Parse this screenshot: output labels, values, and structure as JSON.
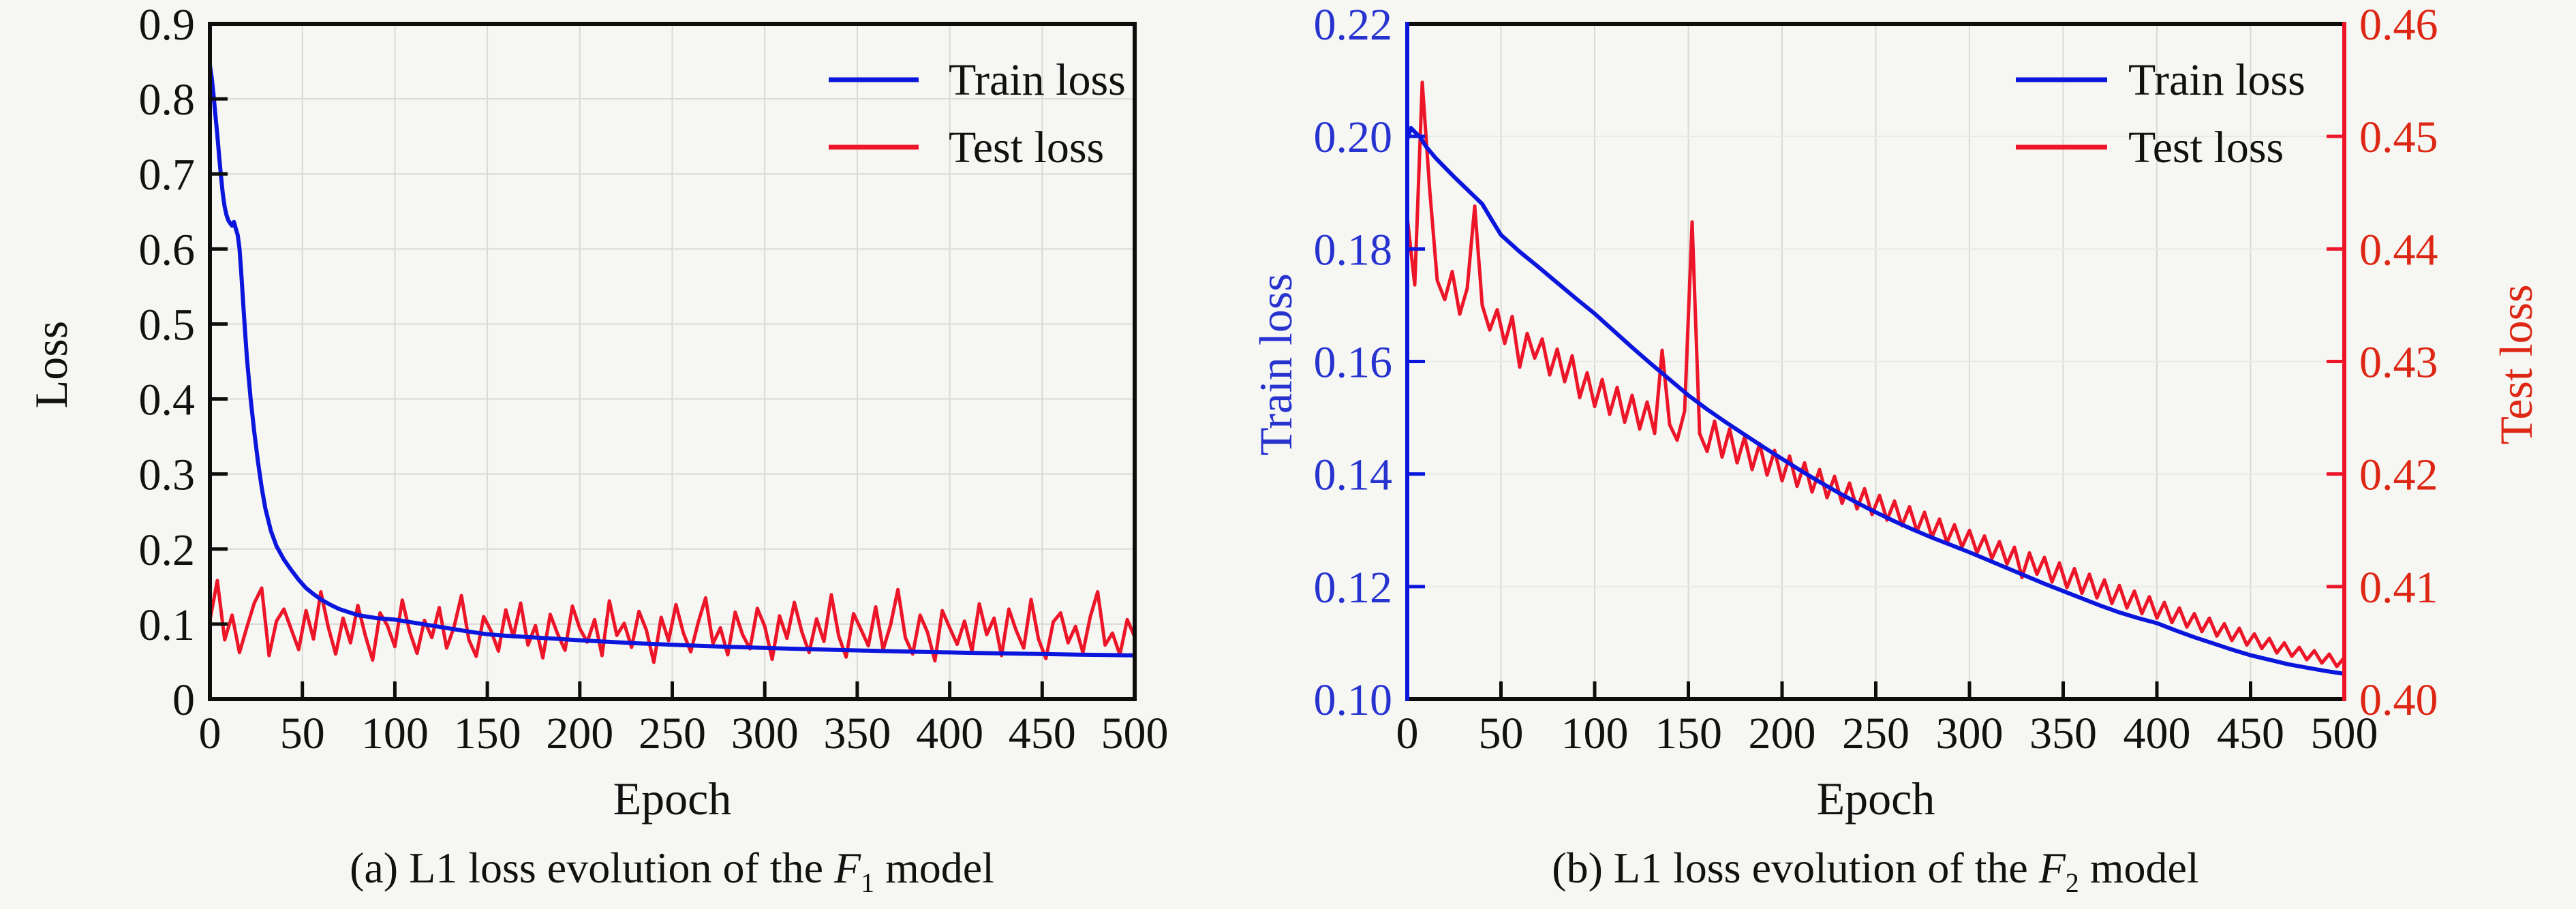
{
  "ui": {
    "background": "#f6f6f3",
    "text_color": "#111111",
    "blue": "#0b16dd",
    "red": "#ed1528",
    "blue_label_color": "#2733cf",
    "red_label_color": "#dd2714",
    "grid_color": "#d9d9d6",
    "grid_color_faint": "#e9e9e6"
  },
  "chart_data": [
    {
      "type": "line",
      "panel": "a",
      "caption": {
        "prefix": "(a) L1 loss evolution of the ",
        "symbol": "F",
        "subscript": "1",
        "suffix": " model"
      },
      "xlabel": "Epoch",
      "ylabel": "Loss",
      "xlim": [
        0,
        500
      ],
      "ylim": [
        0,
        0.9
      ],
      "grid": true,
      "legend_position": "top-right-inside",
      "x_ticks": {
        "values": [
          0,
          50,
          100,
          150,
          200,
          250,
          300,
          350,
          400,
          450,
          500
        ],
        "labels": [
          "0",
          "50",
          "100",
          "150",
          "200",
          "250",
          "300",
          "350",
          "400",
          "450",
          "500"
        ]
      },
      "y_ticks": {
        "values": [
          0,
          0.1,
          0.2,
          0.3,
          0.4,
          0.5,
          0.6,
          0.7,
          0.8,
          0.9
        ],
        "labels": [
          "0",
          "0.1",
          "0.2",
          "0.3",
          "0.4",
          "0.5",
          "0.6",
          "0.7",
          "0.8",
          "0.9"
        ]
      },
      "legend": [
        {
          "label": "Train loss",
          "color": "#0b16dd"
        },
        {
          "label": "Test loss",
          "color": "#ed1528"
        }
      ],
      "series": [
        {
          "name": "Test loss",
          "axis": "left",
          "color": "#ed1528",
          "width": 5,
          "x0": 0,
          "dx": 4,
          "y": [
            0.105,
            0.158,
            0.079,
            0.112,
            0.062,
            0.096,
            0.128,
            0.148,
            0.058,
            0.104,
            0.12,
            0.093,
            0.066,
            0.118,
            0.08,
            0.143,
            0.096,
            0.06,
            0.108,
            0.075,
            0.125,
            0.085,
            0.052,
            0.115,
            0.098,
            0.07,
            0.132,
            0.09,
            0.061,
            0.105,
            0.082,
            0.122,
            0.068,
            0.096,
            0.138,
            0.079,
            0.057,
            0.11,
            0.091,
            0.064,
            0.119,
            0.083,
            0.128,
            0.072,
            0.098,
            0.055,
            0.113,
            0.087,
            0.065,
            0.124,
            0.094,
            0.076,
            0.106,
            0.058,
            0.131,
            0.085,
            0.101,
            0.069,
            0.117,
            0.092,
            0.049,
            0.109,
            0.078,
            0.126,
            0.088,
            0.063,
            0.102,
            0.135,
            0.074,
            0.095,
            0.059,
            0.116,
            0.086,
            0.067,
            0.121,
            0.097,
            0.053,
            0.111,
            0.081,
            0.129,
            0.09,
            0.062,
            0.107,
            0.077,
            0.139,
            0.084,
            0.056,
            0.114,
            0.093,
            0.071,
            0.123,
            0.066,
            0.099,
            0.146,
            0.082,
            0.06,
            0.112,
            0.089,
            0.051,
            0.118,
            0.095,
            0.073,
            0.104,
            0.064,
            0.127,
            0.086,
            0.108,
            0.058,
            0.12,
            0.091,
            0.068,
            0.133,
            0.08,
            0.054,
            0.103,
            0.115,
            0.075,
            0.097,
            0.062,
            0.11,
            0.143,
            0.072,
            0.088,
            0.059,
            0.106,
            0.083
          ]
        },
        {
          "name": "Train loss",
          "axis": "left",
          "color": "#0b16dd",
          "width": 6,
          "x": [
            0,
            1,
            2,
            3,
            4,
            5,
            6,
            7,
            8,
            9,
            10,
            11,
            12,
            13,
            14,
            15,
            16,
            17,
            18,
            19,
            20,
            22,
            24,
            26,
            28,
            30,
            33,
            36,
            40,
            44,
            48,
            52,
            56,
            60,
            65,
            70,
            75,
            80,
            85,
            90,
            95,
            100,
            110,
            120,
            130,
            140,
            150,
            160,
            170,
            180,
            190,
            200,
            215,
            230,
            245,
            260,
            275,
            290,
            305,
            320,
            335,
            350,
            365,
            380,
            395,
            410,
            425,
            440,
            455,
            470,
            485,
            500
          ],
          "y": [
            0.845,
            0.828,
            0.805,
            0.778,
            0.752,
            0.723,
            0.697,
            0.673,
            0.656,
            0.645,
            0.638,
            0.634,
            0.631,
            0.636,
            0.627,
            0.619,
            0.601,
            0.567,
            0.527,
            0.49,
            0.455,
            0.401,
            0.356,
            0.316,
            0.282,
            0.254,
            0.224,
            0.204,
            0.186,
            0.172,
            0.159,
            0.148,
            0.14,
            0.133,
            0.126,
            0.12,
            0.116,
            0.112,
            0.11,
            0.108,
            0.107,
            0.106,
            0.102,
            0.098,
            0.094,
            0.09,
            0.0865,
            0.0845,
            0.083,
            0.0815,
            0.08,
            0.0785,
            0.0765,
            0.0745,
            0.073,
            0.0715,
            0.0702,
            0.069,
            0.0678,
            0.0668,
            0.0658,
            0.0649,
            0.064,
            0.0632,
            0.0625,
            0.0618,
            0.0611,
            0.0605,
            0.0599,
            0.0593,
            0.0588,
            0.0583
          ]
        }
      ]
    },
    {
      "type": "line",
      "panel": "b",
      "caption": {
        "prefix": "(b) L1 loss evolution of the ",
        "symbol": "F",
        "subscript": "2",
        "suffix": " model"
      },
      "xlabel": "Epoch",
      "ylabel_left": "Train loss",
      "ylabel_right": "Test loss",
      "xlim": [
        0,
        500
      ],
      "ylim_left": [
        0.1,
        0.22
      ],
      "ylim_right": [
        0.4,
        0.46
      ],
      "grid": true,
      "legend_position": "top-right-inside",
      "x_ticks": {
        "values": [
          0,
          50,
          100,
          150,
          200,
          250,
          300,
          350,
          400,
          450,
          500
        ],
        "labels": [
          "0",
          "50",
          "100",
          "150",
          "200",
          "250",
          "300",
          "350",
          "400",
          "450",
          "500"
        ]
      },
      "y_ticks_left": {
        "values": [
          0.1,
          0.12,
          0.14,
          0.16,
          0.18,
          0.2,
          0.22
        ],
        "labels": [
          "0.10",
          "0.12",
          "0.14",
          "0.16",
          "0.18",
          "0.20",
          "0.22"
        ]
      },
      "y_ticks_right": {
        "values": [
          0.4,
          0.41,
          0.42,
          0.43,
          0.44,
          0.45,
          0.46
        ],
        "labels": [
          "0.40",
          "0.41",
          "0.42",
          "0.43",
          "0.44",
          "0.45",
          "0.46"
        ]
      },
      "legend": [
        {
          "label": "Train loss",
          "color": "#0b16dd"
        },
        {
          "label": "Test loss",
          "color": "#ed1528"
        }
      ],
      "series": [
        {
          "name": "Test loss",
          "axis": "right",
          "color": "#ed1528",
          "width": 5,
          "x0": 0,
          "dx": 4,
          "y": [
            0.4428,
            0.4368,
            0.4548,
            0.4452,
            0.4372,
            0.4355,
            0.438,
            0.4342,
            0.4365,
            0.4438,
            0.435,
            0.4328,
            0.4346,
            0.4316,
            0.434,
            0.4295,
            0.4325,
            0.4303,
            0.432,
            0.4288,
            0.4311,
            0.4282,
            0.4305,
            0.4268,
            0.429,
            0.426,
            0.4284,
            0.4253,
            0.4277,
            0.4246,
            0.427,
            0.424,
            0.4264,
            0.4236,
            0.431,
            0.4244,
            0.423,
            0.4256,
            0.4424,
            0.4236,
            0.422,
            0.4247,
            0.4215,
            0.424,
            0.421,
            0.4233,
            0.4204,
            0.4227,
            0.4199,
            0.4221,
            0.4194,
            0.4216,
            0.4189,
            0.421,
            0.4184,
            0.4204,
            0.4179,
            0.4198,
            0.4174,
            0.4192,
            0.4169,
            0.4187,
            0.4164,
            0.4181,
            0.4159,
            0.4176,
            0.4154,
            0.4171,
            0.4149,
            0.4166,
            0.4144,
            0.416,
            0.4139,
            0.4155,
            0.4135,
            0.415,
            0.413,
            0.4145,
            0.4125,
            0.414,
            0.412,
            0.4135,
            0.4108,
            0.413,
            0.4111,
            0.4126,
            0.4104,
            0.4121,
            0.4099,
            0.4116,
            0.4094,
            0.4111,
            0.409,
            0.4106,
            0.4085,
            0.4101,
            0.4081,
            0.4096,
            0.4076,
            0.4091,
            0.4072,
            0.4086,
            0.4068,
            0.4081,
            0.4064,
            0.4076,
            0.406,
            0.4072,
            0.4056,
            0.4067,
            0.4052,
            0.4063,
            0.4048,
            0.4058,
            0.4045,
            0.4054,
            0.4041,
            0.405,
            0.4038,
            0.4046,
            0.4035,
            0.4043,
            0.4032,
            0.404,
            0.4029,
            0.4037
          ]
        },
        {
          "name": "Train loss",
          "axis": "left",
          "color": "#0b16dd",
          "width": 6,
          "x": [
            0,
            2,
            4,
            7,
            10,
            15,
            20,
            25,
            30,
            35,
            40,
            45,
            50,
            60,
            70,
            80,
            90,
            100,
            110,
            120,
            130,
            140,
            150,
            160,
            170,
            180,
            190,
            200,
            210,
            220,
            230,
            240,
            250,
            260,
            270,
            280,
            290,
            300,
            310,
            320,
            330,
            340,
            350,
            360,
            370,
            380,
            390,
            400,
            410,
            420,
            430,
            440,
            450,
            460,
            470,
            480,
            490,
            500
          ],
          "y": [
            0.1995,
            0.2015,
            0.2008,
            0.1998,
            0.1982,
            0.1962,
            0.1945,
            0.1928,
            0.1912,
            0.1896,
            0.188,
            0.1852,
            0.1825,
            0.1795,
            0.1768,
            0.174,
            0.1712,
            0.1685,
            0.1655,
            0.1625,
            0.1596,
            0.1568,
            0.154,
            0.1515,
            0.1492,
            0.147,
            0.1448,
            0.1427,
            0.1406,
            0.1386,
            0.1367,
            0.1349,
            0.1332,
            0.1316,
            0.1301,
            0.1287,
            0.1274,
            0.1261,
            0.1247,
            0.1233,
            0.1219,
            0.1205,
            0.1192,
            0.1179,
            0.1166,
            0.1154,
            0.1144,
            0.1135,
            0.1122,
            0.111,
            0.1099,
            0.1088,
            0.1078,
            0.107,
            0.1062,
            0.1056,
            0.105,
            0.1045
          ]
        }
      ]
    }
  ]
}
